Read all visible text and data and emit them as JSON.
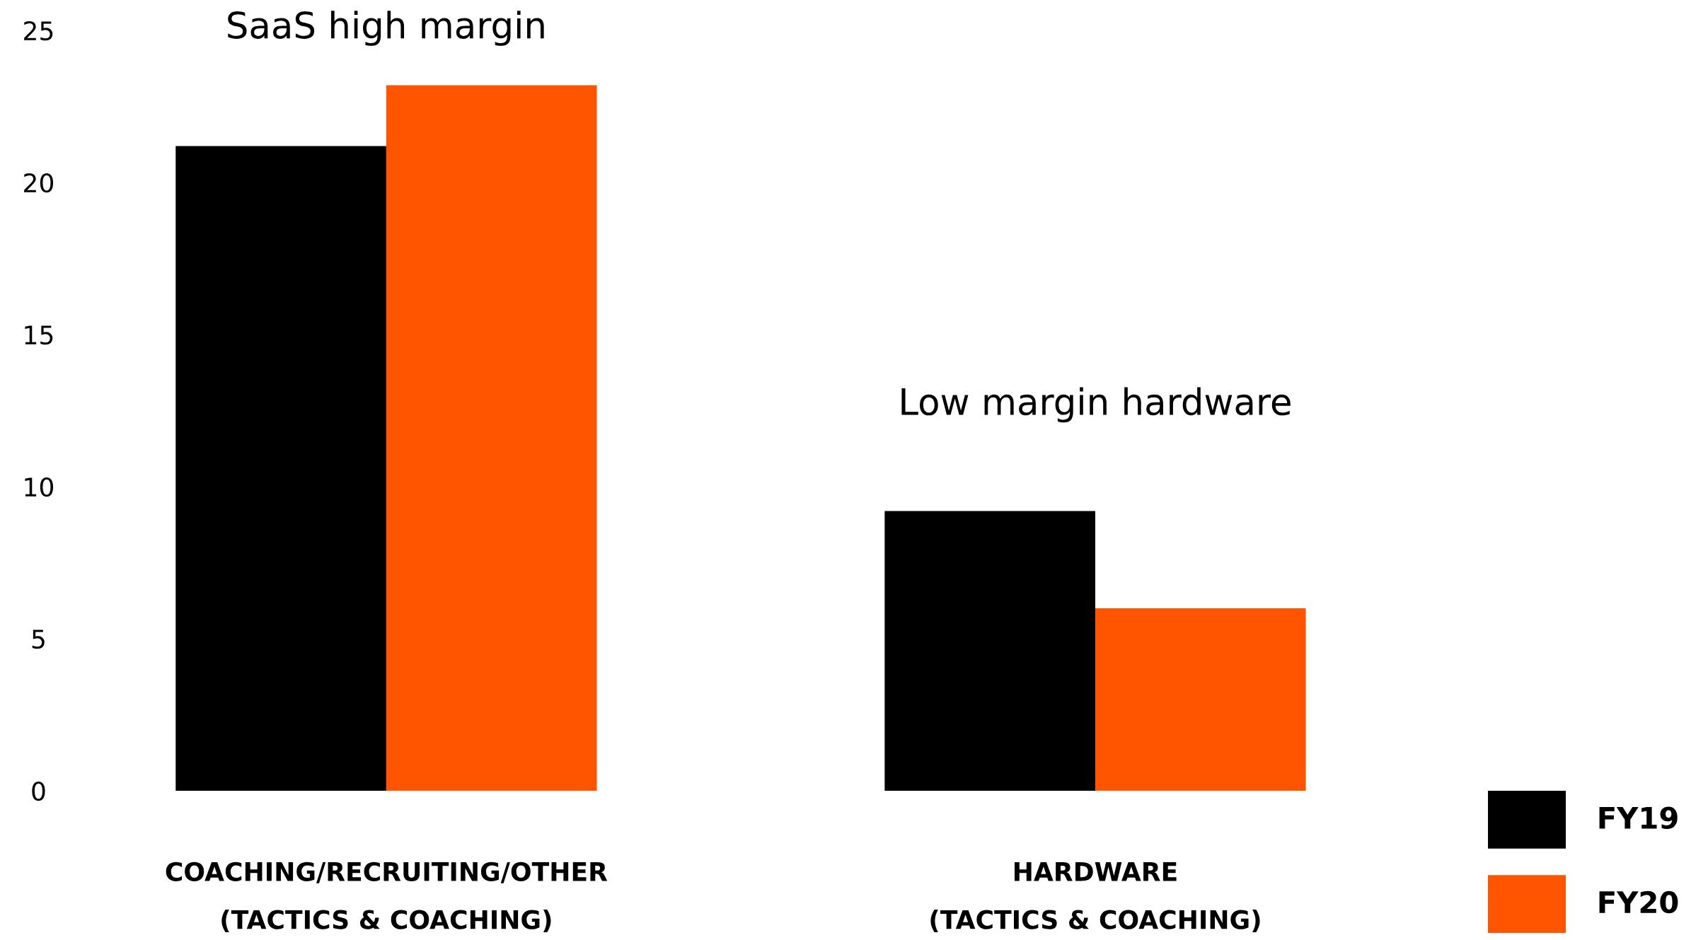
{
  "chart_data": {
    "type": "bar",
    "categories": [
      "COACHING/RECRUITING/OTHER\n(TACTICS & COACHING)",
      "HARDWARE\n(TACTICS & COACHING)"
    ],
    "series": [
      {
        "name": "FY19",
        "color": "#000000",
        "values": [
          21.2,
          9.2
        ]
      },
      {
        "name": "FY20",
        "color": "#ff5500",
        "values": [
          23.2,
          6.0
        ]
      }
    ],
    "ylim": [
      0,
      25
    ],
    "yticks": [
      0,
      5,
      10,
      15,
      20,
      25
    ],
    "annotations": [
      "SaaS high margin",
      "Low margin hardware"
    ],
    "legend": "bottom right"
  }
}
